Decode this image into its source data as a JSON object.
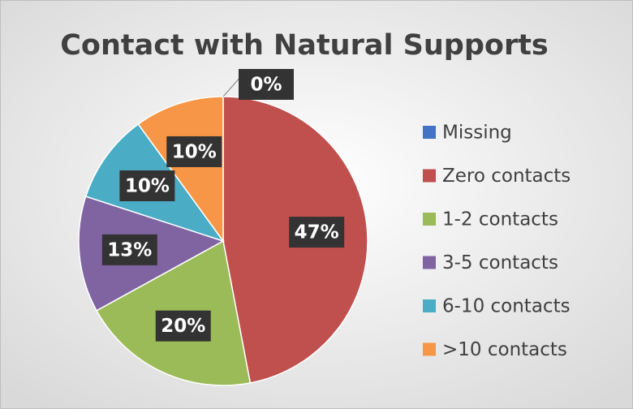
{
  "chart_data": {
    "type": "pie",
    "title": "Contact with Natural Supports",
    "categories": [
      "Missing",
      "Zero contacts",
      "1-2 contacts",
      "3-5 contacts",
      "6-10 contacts",
      ">10 contacts"
    ],
    "values": [
      0,
      47,
      20,
      13,
      10,
      10
    ],
    "value_labels": [
      "0%",
      "47%",
      "20%",
      "13%",
      "10%",
      "10%"
    ],
    "colors": [
      "#4472c4",
      "#c0504d",
      "#9bbb59",
      "#8064a2",
      "#4bacc6",
      "#f79646"
    ],
    "legend": "right"
  }
}
